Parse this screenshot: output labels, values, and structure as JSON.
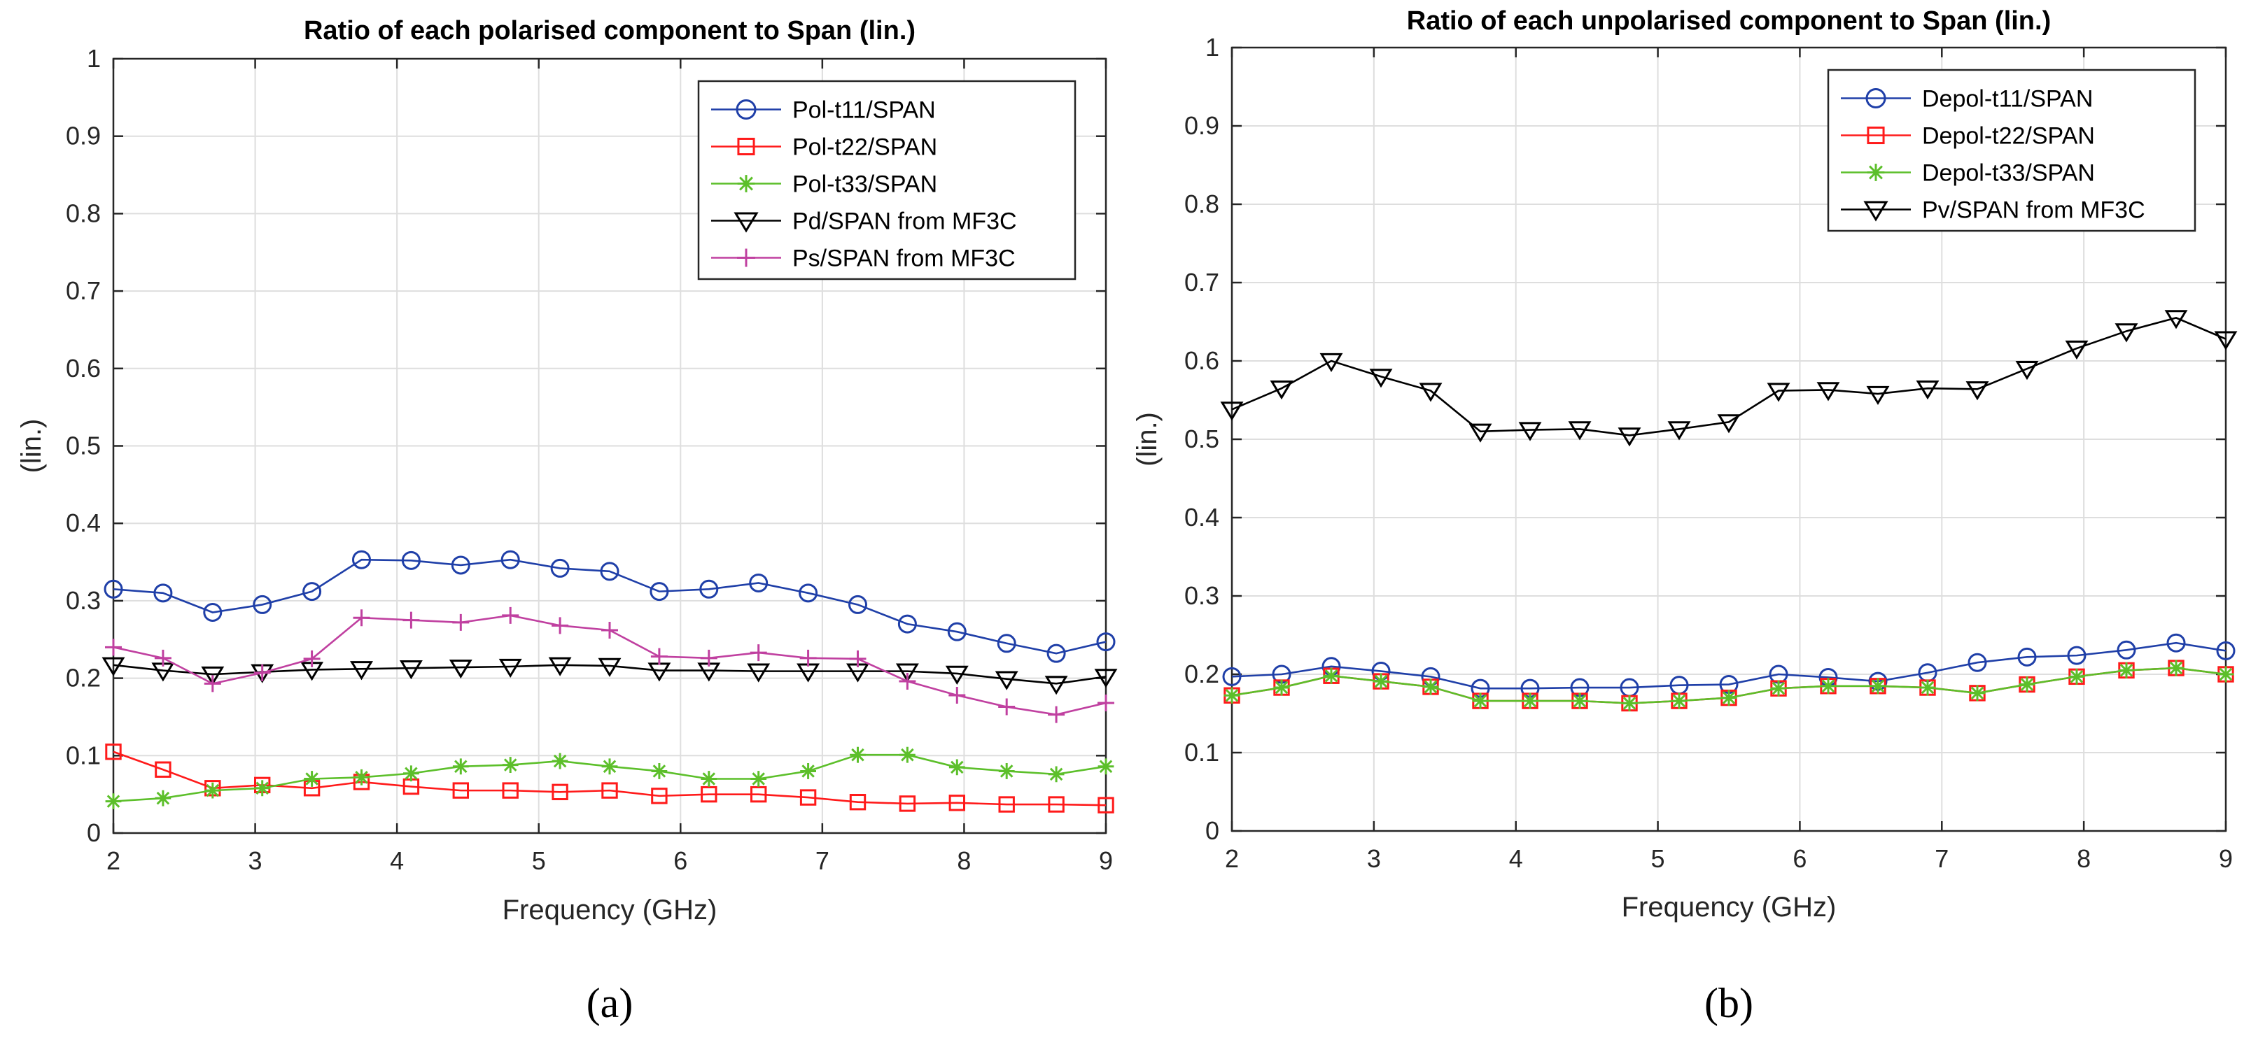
{
  "chart_data": [
    {
      "type": "line",
      "panel_label": "(a)",
      "title": "Ratio of each polarised component to Span (lin.)",
      "xlabel": "Frequency (GHz)",
      "ylabel": "(lin.)",
      "xlim": [
        2,
        9
      ],
      "ylim": [
        0,
        1
      ],
      "xticks": [
        "2",
        "3",
        "4",
        "5",
        "6",
        "7",
        "8",
        "9"
      ],
      "yticks": [
        "0",
        "0.1",
        "0.2",
        "0.3",
        "0.4",
        "0.5",
        "0.6",
        "0.7",
        "0.8",
        "0.9",
        "1"
      ],
      "grid": true,
      "legend_position": "top-right",
      "x": [
        2.0,
        2.35,
        2.7,
        3.05,
        3.4,
        3.75,
        4.1,
        4.45,
        4.8,
        5.15,
        5.5,
        5.85,
        6.2,
        6.55,
        6.9,
        7.25,
        7.6,
        7.95,
        8.3,
        8.65,
        9.0
      ],
      "series": [
        {
          "name": "Pol-t11/SPAN",
          "color": "#1f3fa8",
          "marker": "circle",
          "values": [
            0.315,
            0.31,
            0.285,
            0.295,
            0.312,
            0.353,
            0.352,
            0.346,
            0.353,
            0.342,
            0.338,
            0.312,
            0.315,
            0.323,
            0.31,
            0.295,
            0.27,
            0.26,
            0.245,
            0.232,
            0.247
          ]
        },
        {
          "name": "Pol-t22/SPAN",
          "color": "#ff1a1a",
          "marker": "square",
          "values": [
            0.105,
            0.082,
            0.058,
            0.062,
            0.058,
            0.066,
            0.06,
            0.055,
            0.055,
            0.053,
            0.055,
            0.048,
            0.05,
            0.05,
            0.046,
            0.04,
            0.038,
            0.039,
            0.037,
            0.037,
            0.036
          ]
        },
        {
          "name": "Pol-t33/SPAN",
          "color": "#5cbf2a",
          "marker": "asterisk",
          "values": [
            0.041,
            0.045,
            0.055,
            0.058,
            0.07,
            0.072,
            0.077,
            0.086,
            0.088,
            0.093,
            0.086,
            0.08,
            0.07,
            0.07,
            0.08,
            0.101,
            0.101,
            0.085,
            0.08,
            0.076,
            0.086
          ]
        },
        {
          "name": "Pd/SPAN from MF3C",
          "color": "#000000",
          "marker": "triangle-down",
          "values": [
            0.217,
            0.21,
            0.205,
            0.208,
            0.211,
            0.212,
            0.213,
            0.214,
            0.215,
            0.217,
            0.216,
            0.21,
            0.21,
            0.209,
            0.209,
            0.209,
            0.209,
            0.206,
            0.199,
            0.193,
            0.202
          ]
        },
        {
          "name": "Ps/SPAN from MF3C",
          "color": "#c040a0",
          "marker": "plus",
          "values": [
            0.24,
            0.226,
            0.193,
            0.207,
            0.225,
            0.278,
            0.275,
            0.272,
            0.281,
            0.268,
            0.262,
            0.228,
            0.226,
            0.233,
            0.226,
            0.225,
            0.196,
            0.178,
            0.163,
            0.153,
            0.168
          ]
        }
      ]
    },
    {
      "type": "line",
      "panel_label": "(b)",
      "title": "Ratio of each unpolarised component to Span (lin.)",
      "xlabel": "Frequency (GHz)",
      "ylabel": "(lin.)",
      "xlim": [
        2,
        9
      ],
      "ylim": [
        0,
        1
      ],
      "xticks": [
        "2",
        "3",
        "4",
        "5",
        "6",
        "7",
        "8",
        "9"
      ],
      "yticks": [
        "0",
        "0.1",
        "0.2",
        "0.3",
        "0.4",
        "0.5",
        "0.6",
        "0.7",
        "0.8",
        "0.9",
        "1"
      ],
      "grid": true,
      "legend_position": "top-right",
      "x": [
        2.0,
        2.35,
        2.7,
        3.05,
        3.4,
        3.75,
        4.1,
        4.45,
        4.8,
        5.15,
        5.5,
        5.85,
        6.2,
        6.55,
        6.9,
        7.25,
        7.6,
        7.95,
        8.3,
        8.65,
        9.0
      ],
      "series": [
        {
          "name": "Depol-t11/SPAN",
          "color": "#1f3fa8",
          "marker": "circle",
          "values": [
            0.197,
            0.2,
            0.21,
            0.204,
            0.197,
            0.182,
            0.182,
            0.183,
            0.183,
            0.186,
            0.187,
            0.2,
            0.196,
            0.191,
            0.202,
            0.215,
            0.222,
            0.224,
            0.231,
            0.24,
            0.23
          ]
        },
        {
          "name": "Depol-t22/SPAN",
          "color": "#ff1a1a",
          "marker": "square",
          "values": [
            0.173,
            0.183,
            0.198,
            0.191,
            0.184,
            0.166,
            0.166,
            0.166,
            0.163,
            0.166,
            0.17,
            0.182,
            0.185,
            0.185,
            0.183,
            0.176,
            0.187,
            0.197,
            0.205,
            0.208,
            0.2
          ]
        },
        {
          "name": "Depol-t33/SPAN",
          "color": "#5cbf2a",
          "marker": "asterisk",
          "values": [
            0.173,
            0.183,
            0.198,
            0.191,
            0.184,
            0.166,
            0.166,
            0.166,
            0.163,
            0.166,
            0.17,
            0.182,
            0.185,
            0.185,
            0.183,
            0.176,
            0.187,
            0.197,
            0.205,
            0.208,
            0.2
          ]
        },
        {
          "name": "Pv/SPAN from MF3C",
          "color": "#000000",
          "marker": "triangle-down",
          "values": [
            0.538,
            0.565,
            0.6,
            0.58,
            0.562,
            0.51,
            0.512,
            0.513,
            0.505,
            0.513,
            0.522,
            0.562,
            0.563,
            0.558,
            0.565,
            0.564,
            0.59,
            0.616,
            0.638,
            0.655,
            0.628
          ]
        }
      ]
    }
  ]
}
